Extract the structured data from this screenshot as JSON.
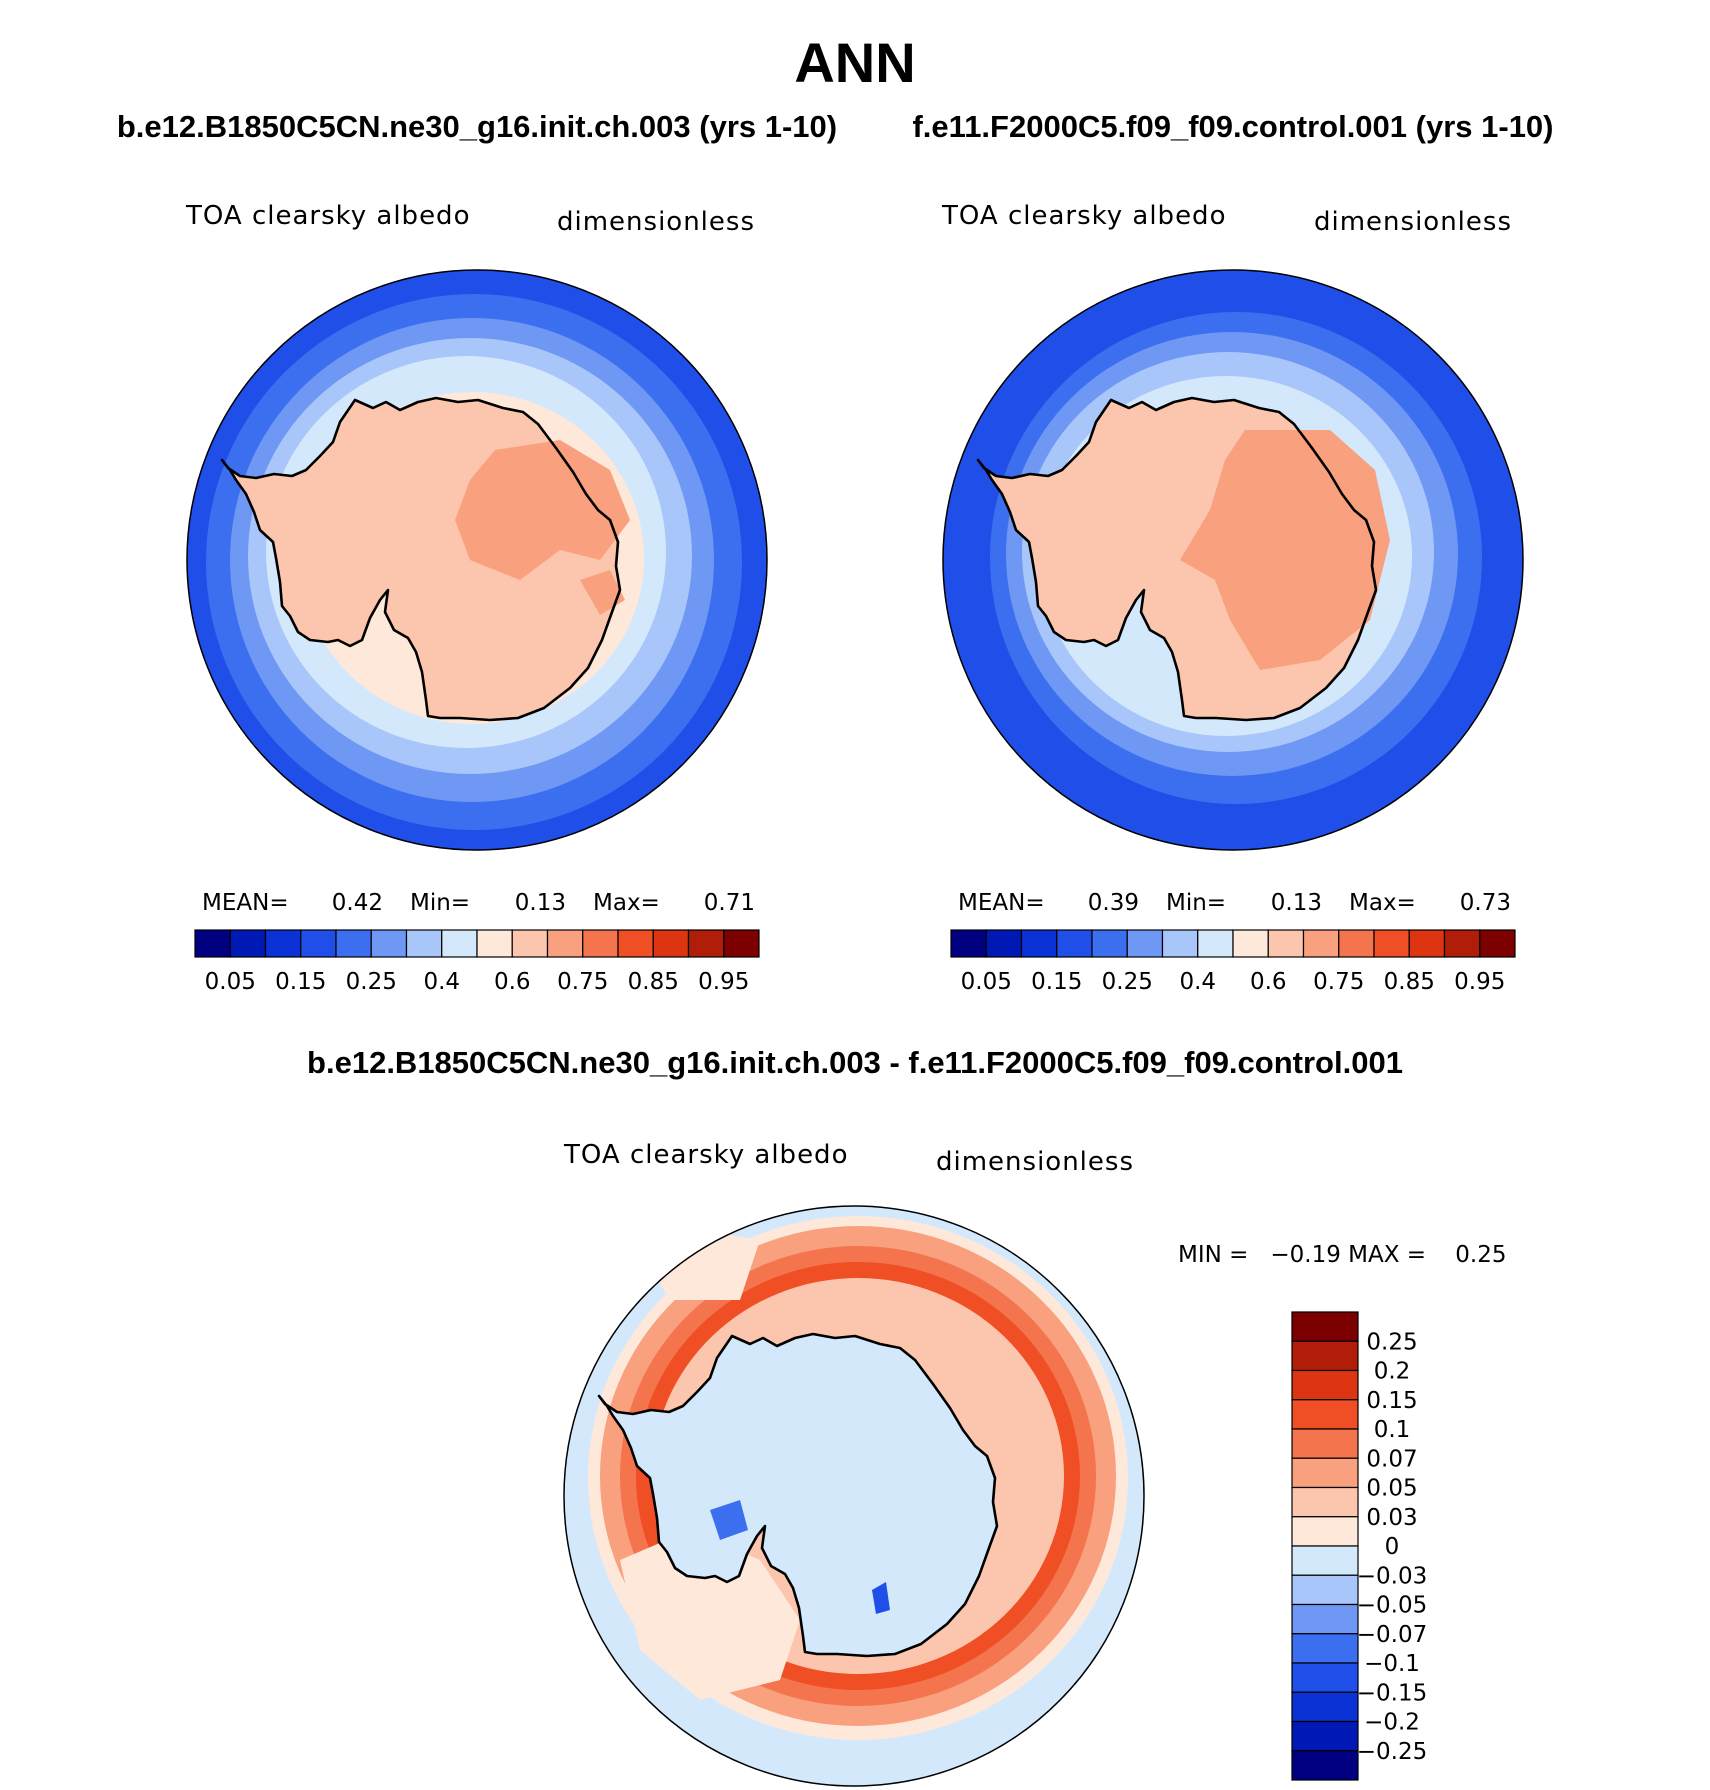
{
  "figure": {
    "season": "ANN",
    "test_case_title": "b.e12.B1850C5CN.ne30_g16.init.ch.003 (yrs 1-10)",
    "control_case_title": "f.e11.F2000C5.f09_f09.control.001 (yrs 1-10)",
    "diff_title": "b.e12.B1850C5CN.ne30_g16.init.ch.003 - f.e11.F2000C5.f09_f09.control.001"
  },
  "panels": {
    "test": {
      "variable": "TOA clearsky albedo",
      "units": "dimensionless",
      "mean_label": "MEAN=",
      "mean": "0.42",
      "min_label": "Min=",
      "min": "0.13",
      "max_label": "Max=",
      "max": "0.71"
    },
    "control": {
      "variable": "TOA clearsky albedo",
      "units": "dimensionless",
      "mean_label": "MEAN=",
      "mean": "0.39",
      "min_label": "Min=",
      "min": "0.13",
      "max_label": "Max=",
      "max": "0.73"
    },
    "diff": {
      "variable": "TOA clearsky albedo",
      "units": "dimensionless",
      "minmax_text": "MIN =   −0.19 MAX =    0.25"
    }
  },
  "colorbars": {
    "abs": {
      "colors": [
        "#000080",
        "#0018b4",
        "#0a32d4",
        "#1f4fe8",
        "#3c6ef0",
        "#6e98f4",
        "#a8c6fa",
        "#d4e8fc",
        "#fde8da",
        "#fcc6ae",
        "#f9a07e",
        "#f4744e",
        "#f04e24",
        "#dd3412",
        "#b01e0a",
        "#7d0000"
      ],
      "tick_labels": [
        "0.05",
        "0.15",
        "0.25",
        "0.4",
        "0.6",
        "0.75",
        "0.85",
        "0.95"
      ]
    },
    "diff": {
      "colors": [
        "#000080",
        "#0018b4",
        "#0a32d4",
        "#1f4fe8",
        "#3c6ef0",
        "#6e98f4",
        "#a8c6fa",
        "#d4e8fc",
        "#fde8da",
        "#fcc6ae",
        "#f9a07e",
        "#f4744e",
        "#f04e24",
        "#dd3412",
        "#b01e0a",
        "#7d0000"
      ],
      "tick_labels": [
        "0.25",
        "0.2",
        "0.15",
        "0.1",
        "0.07",
        "0.05",
        "0.03",
        "0",
        "−0.03",
        "−0.05",
        "−0.07",
        "−0.1",
        "−0.15",
        "−0.2",
        "−0.25"
      ]
    }
  }
}
